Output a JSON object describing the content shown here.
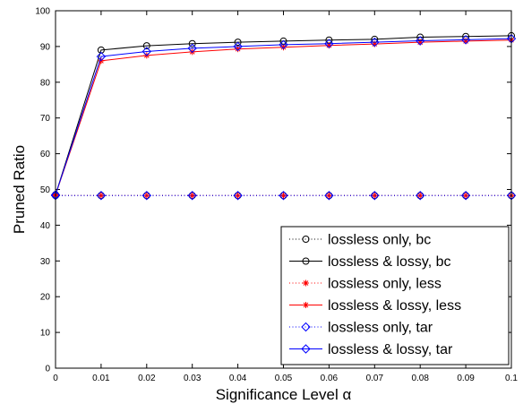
{
  "chart_data": {
    "type": "line",
    "xlabel": "Significance Level α",
    "ylabel": "Pruned Ratio",
    "xlim": [
      0,
      0.1
    ],
    "ylim": [
      0,
      100
    ],
    "xticks": [
      "0",
      "0.01",
      "0.02",
      "0.03",
      "0.04",
      "0.05",
      "0.06",
      "0.07",
      "0.08",
      "0.09",
      "0.1"
    ],
    "yticks": [
      "0",
      "10",
      "20",
      "30",
      "40",
      "50",
      "60",
      "70",
      "80",
      "90",
      "100"
    ],
    "x": [
      0,
      0.01,
      0.02,
      0.03,
      0.04,
      0.05,
      0.06,
      0.07,
      0.08,
      0.09,
      0.1
    ],
    "legend_placement": "bottom-right",
    "grid": false,
    "series": [
      {
        "name": "lossless only, bc",
        "color": "#000000",
        "line": "dotted",
        "marker": "circle",
        "values": [
          48.3,
          48.3,
          48.3,
          48.3,
          48.3,
          48.3,
          48.3,
          48.3,
          48.3,
          48.3,
          48.3
        ]
      },
      {
        "name": "lossless & lossy, bc",
        "color": "#000000",
        "line": "solid",
        "marker": "circle",
        "values": [
          48.5,
          89.0,
          90.2,
          90.8,
          91.2,
          91.5,
          91.8,
          92.0,
          92.6,
          92.8,
          93.0
        ]
      },
      {
        "name": "lossless only, less",
        "color": "#ff0000",
        "line": "dotted",
        "marker": "star",
        "values": [
          48.3,
          48.3,
          48.3,
          48.3,
          48.3,
          48.3,
          48.3,
          48.3,
          48.3,
          48.3,
          48.3
        ]
      },
      {
        "name": "lossless & lossy, less",
        "color": "#ff0000",
        "line": "solid",
        "marker": "star",
        "values": [
          48.5,
          86.0,
          87.5,
          88.5,
          89.3,
          89.8,
          90.3,
          90.7,
          91.2,
          91.5,
          91.8
        ]
      },
      {
        "name": "lossless only, tar",
        "color": "#0000ff",
        "line": "dotted",
        "marker": "diamond",
        "values": [
          48.3,
          48.3,
          48.3,
          48.3,
          48.3,
          48.3,
          48.3,
          48.3,
          48.3,
          48.3,
          48.3
        ]
      },
      {
        "name": "lossless & lossy, tar",
        "color": "#0000ff",
        "line": "solid",
        "marker": "diamond",
        "values": [
          48.5,
          87.2,
          88.6,
          89.5,
          90.0,
          90.5,
          90.8,
          91.2,
          91.6,
          91.9,
          92.2
        ]
      }
    ]
  }
}
